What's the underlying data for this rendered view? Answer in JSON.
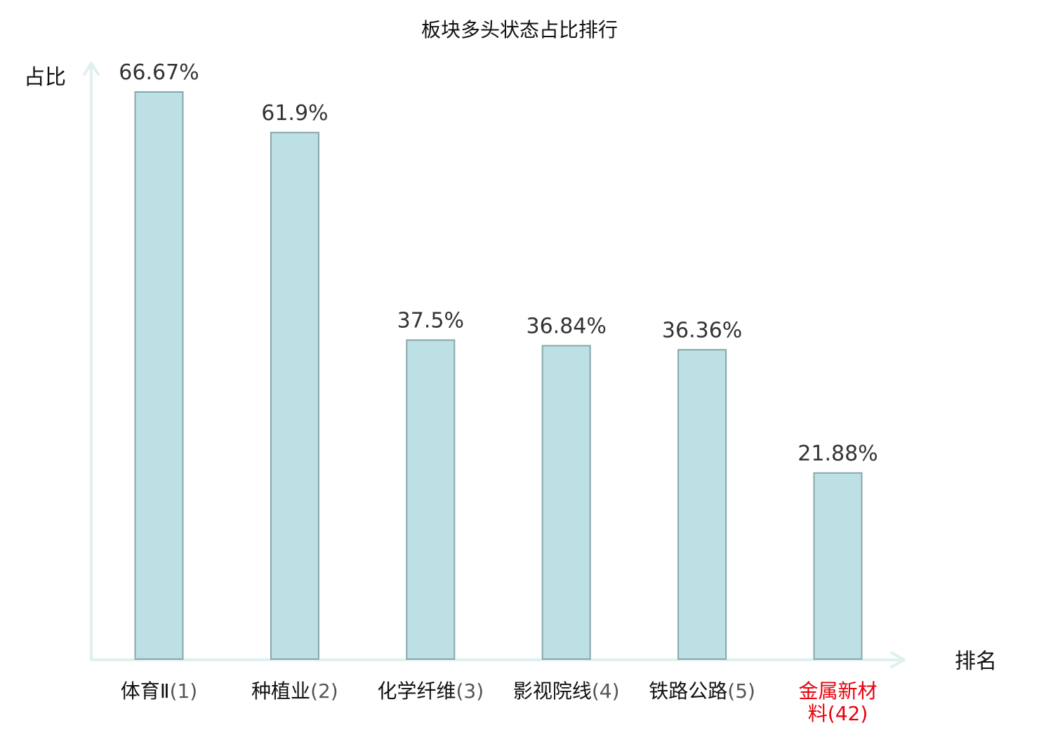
{
  "chart_data": {
    "type": "bar",
    "title": "板块多头状态占比排行",
    "ylabel": "占比",
    "xlabel": "排名",
    "ylim": [
      0,
      72
    ],
    "grid": false,
    "categories": [
      {
        "name": "体育Ⅱ",
        "rank": "(1)",
        "highlight": false
      },
      {
        "name": "种植业",
        "rank": "(2)",
        "highlight": false
      },
      {
        "name": "化学纤维",
        "rank": "(3)",
        "highlight": false
      },
      {
        "name": "影视院线",
        "rank": "(4)",
        "highlight": false
      },
      {
        "name": "铁路公路",
        "rank": "(5)",
        "highlight": false
      },
      {
        "name": "金属新材料",
        "rank": "(42)",
        "highlight": true
      }
    ],
    "values": [
      66.67,
      61.9,
      37.5,
      36.84,
      36.36,
      21.88
    ],
    "value_labels": [
      "66.67%",
      "61.9%",
      "37.5%",
      "36.84%",
      "36.36%",
      "21.88%"
    ]
  },
  "colors": {
    "bar_fill": "#bce0e3",
    "bar_stroke": "#87a7a9",
    "axis": "#dff0ef",
    "highlight": "#e8000b"
  }
}
